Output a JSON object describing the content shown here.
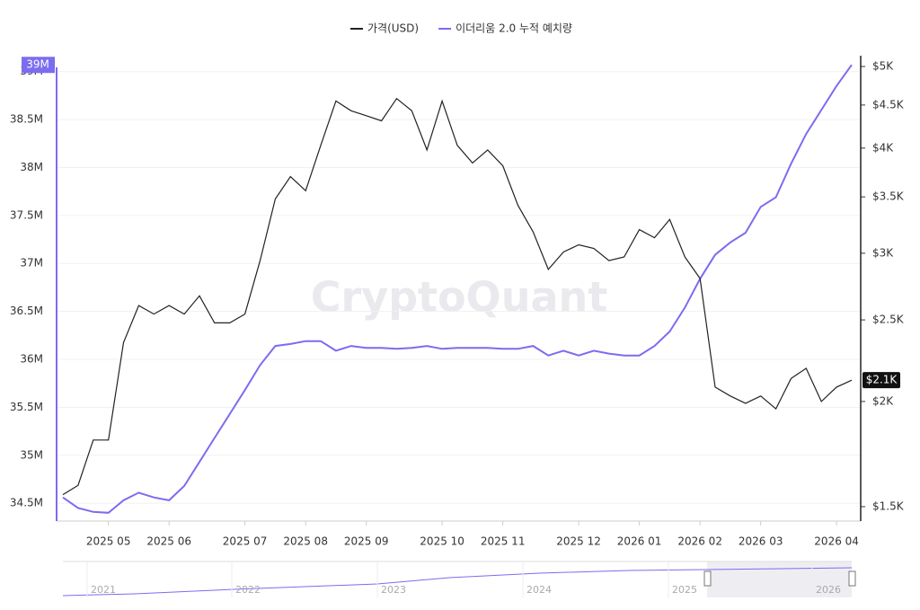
{
  "chart_data": {
    "type": "line",
    "watermark": "CryptoQuant",
    "categories": [
      null,
      null,
      null,
      "2025 05",
      null,
      null,
      null,
      "2025 06",
      null,
      null,
      null,
      null,
      "2025 07",
      null,
      null,
      null,
      "2025 08",
      null,
      null,
      null,
      "2025 09",
      null,
      null,
      null,
      null,
      "2025 10",
      null,
      null,
      null,
      "2025 11",
      null,
      null,
      null,
      null,
      "2025 12",
      null,
      null,
      null,
      "2026 01",
      null,
      null,
      null,
      "2026 02",
      null,
      null,
      null,
      "2026 03",
      null,
      null,
      null,
      null,
      "2026 04",
      null
    ],
    "series": [
      {
        "name": "가격(USD)",
        "color": "#222222",
        "axis": "y2",
        "last_value_label": "$2.1K",
        "values": [
          1550,
          1590,
          1800,
          1800,
          2350,
          2600,
          2540,
          2600,
          2540,
          2670,
          2480,
          2480,
          2540,
          2940,
          3480,
          3700,
          3560,
          4030,
          4550,
          4430,
          4370,
          4310,
          4580,
          4430,
          3980,
          4550,
          4030,
          3840,
          3980,
          3810,
          3420,
          3180,
          2870,
          3010,
          3070,
          3040,
          2940,
          2970,
          3200,
          3130,
          3290,
          2970,
          2800,
          2080,
          2030,
          1990,
          2030,
          1960,
          2130,
          2190,
          2000,
          2080,
          2120
        ]
      },
      {
        "name": "이더리움 2.0 누적 예치량",
        "color": "#7b6cf0",
        "last_value_label": "39M",
        "values": [
          34560000,
          34450000,
          34410000,
          34400000,
          34530000,
          34610000,
          34560000,
          34530000,
          34680000,
          34930000,
          35180000,
          35430000,
          35680000,
          35940000,
          36140000,
          36160000,
          36190000,
          36190000,
          36090000,
          36140000,
          36120000,
          36120000,
          36110000,
          36120000,
          36140000,
          36110000,
          36120000,
          36120000,
          36120000,
          36110000,
          36110000,
          36140000,
          36040000,
          36090000,
          36040000,
          36090000,
          36060000,
          36040000,
          36040000,
          36140000,
          36290000,
          36540000,
          36840000,
          37090000,
          37220000,
          37320000,
          37590000,
          37690000,
          38040000,
          38350000,
          38600000,
          38850000,
          39070000
        ]
      }
    ],
    "ylim": [
      34314000,
      39166000
    ],
    "yticks": [
      {
        "value": 34500000,
        "label": "34.5M"
      },
      {
        "value": 35000000,
        "label": "35M"
      },
      {
        "value": 35500000,
        "label": "35.5M"
      },
      {
        "value": 36000000,
        "label": "36M"
      },
      {
        "value": 36500000,
        "label": "36.5M"
      },
      {
        "value": 37000000,
        "label": "37M"
      },
      {
        "value": 37500000,
        "label": "37.5M"
      },
      {
        "value": 38000000,
        "label": "38M"
      },
      {
        "value": 38500000,
        "label": "38.5M"
      },
      {
        "value": 39000000,
        "label": "39M"
      }
    ],
    "y2lim": [
      1442,
      5150
    ],
    "y2_log": true,
    "y2ticks": [
      {
        "value": 1500,
        "label": "$1.5K"
      },
      {
        "value": 2000,
        "label": "$2K"
      },
      {
        "value": 2500,
        "label": "$2.5K"
      },
      {
        "value": 3000,
        "label": "$3K"
      },
      {
        "value": 3500,
        "label": "$3.5K"
      },
      {
        "value": 4000,
        "label": "$4K"
      },
      {
        "value": 4500,
        "label": "$4.5K"
      },
      {
        "value": 5000,
        "label": "$5K"
      }
    ],
    "grid": true,
    "navigator_labels": [
      "2021",
      "2022",
      "2023",
      "2024",
      "2025",
      "2026"
    ]
  }
}
